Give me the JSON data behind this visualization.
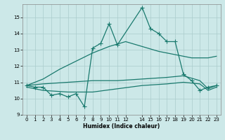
{
  "title": "",
  "xlabel": "Humidex (Indice chaleur)",
  "bg_color": "#cce8e8",
  "grid_color": "#aacccc",
  "line_color": "#1a7a6e",
  "xlim": [
    -0.5,
    23.5
  ],
  "ylim": [
    9,
    15.8
  ],
  "yticks": [
    9,
    10,
    11,
    12,
    13,
    14,
    15
  ],
  "xticks": [
    0,
    1,
    2,
    3,
    4,
    5,
    6,
    7,
    8,
    9,
    10,
    11,
    12,
    14,
    15,
    16,
    17,
    18,
    19,
    20,
    21,
    22,
    23
  ],
  "series": [
    {
      "x": [
        0,
        1,
        2,
        3,
        4,
        5,
        6,
        7,
        8,
        9,
        10,
        11,
        14,
        15,
        16,
        17,
        18,
        19,
        20,
        21,
        22,
        23
      ],
      "y": [
        10.8,
        10.7,
        10.7,
        10.2,
        10.3,
        10.1,
        10.3,
        9.5,
        13.1,
        13.4,
        14.6,
        13.3,
        15.6,
        14.3,
        14.0,
        13.5,
        13.5,
        11.5,
        11.1,
        10.5,
        10.7,
        10.8
      ],
      "marker": "+",
      "linestyle": "-",
      "linewidth": 0.9,
      "markersize": 4
    },
    {
      "x": [
        0,
        2,
        4,
        6,
        8,
        10,
        12,
        14,
        16,
        18,
        20,
        22,
        23
      ],
      "y": [
        10.8,
        11.2,
        11.8,
        12.3,
        12.8,
        13.2,
        13.5,
        13.2,
        12.9,
        12.7,
        12.5,
        12.5,
        12.6
      ],
      "marker": null,
      "linestyle": "-",
      "linewidth": 0.9,
      "markersize": 0
    },
    {
      "x": [
        0,
        2,
        5,
        8,
        11,
        14,
        17,
        19,
        21,
        22,
        23
      ],
      "y": [
        10.8,
        10.9,
        11.0,
        11.1,
        11.1,
        11.2,
        11.3,
        11.4,
        11.1,
        10.6,
        10.8
      ],
      "marker": null,
      "linestyle": "-",
      "linewidth": 0.9,
      "markersize": 0
    },
    {
      "x": [
        0,
        2,
        5,
        8,
        11,
        14,
        17,
        19,
        21,
        22,
        23
      ],
      "y": [
        10.7,
        10.5,
        10.4,
        10.4,
        10.6,
        10.8,
        10.9,
        11.0,
        10.9,
        10.5,
        10.7
      ],
      "marker": null,
      "linestyle": "-",
      "linewidth": 0.9,
      "markersize": 0
    }
  ]
}
